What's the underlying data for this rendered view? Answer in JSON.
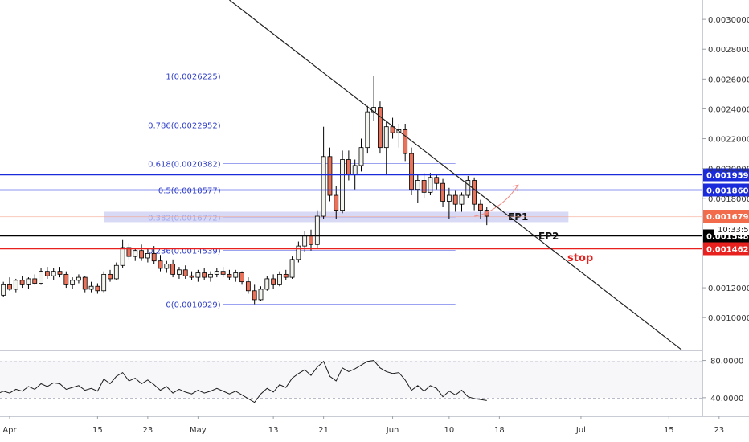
{
  "chart_data": {
    "type": "candlestick",
    "main": {
      "y_axis_ticks": [
        "0.0030000",
        "0.0028000",
        "0.0026000",
        "0.0024000",
        "0.0022000",
        "0.0020000",
        "0.0018000",
        "0.0012000",
        "0.0010000"
      ],
      "ylim": [
        0.00078,
        0.00313
      ],
      "last_price": "0.0016794",
      "countdown": "10:33:50",
      "fibonacci": {
        "start_date": "2020-05-05",
        "end_date": "2020-06-11",
        "levels": [
          {
            "label": "1(0.0026225)",
            "value": 0.0026225
          },
          {
            "label": "0.786(0.0022952)",
            "value": 0.0022952
          },
          {
            "label": "0.618(0.0020382)",
            "value": 0.0020382
          },
          {
            "label": "0.5(0.0018577)",
            "value": 0.0018577
          },
          {
            "label": "0.382(0.0016772)",
            "value": 0.0016772
          },
          {
            "label": "0.236(0.0014539)",
            "value": 0.0014539
          },
          {
            "label": "0(0.0010929)",
            "value": 0.0010929
          }
        ]
      },
      "horizontal_lines": [
        {
          "label": "0.0019591",
          "value": 0.0019591,
          "color": "#1a2bdb",
          "annotation": ""
        },
        {
          "label": "0.0018604",
          "value": 0.0018604,
          "color": "#1a2bdb",
          "annotation": ""
        },
        {
          "label": "0.0015486",
          "value": 0.0015486,
          "color": "#000000",
          "annotation": "EP2"
        },
        {
          "label": "0.0014629",
          "value": 0.0014629,
          "color": "#e8201e",
          "annotation": "stop"
        }
      ],
      "zone": {
        "from_date": "2020-04-16",
        "to_date": "2020-06-29",
        "low": 0.00164,
        "high": 0.00171,
        "annotation": "EP1"
      },
      "trendline": {
        "start": {
          "date": "2020-05-06",
          "value": 0.00313
        },
        "end": {
          "date": "2020-07-17",
          "value": 0.000785
        }
      },
      "projection": {
        "points": [
          [
            "2020-06-14",
            0.00168
          ],
          [
            "2020-06-16",
            0.00169
          ],
          [
            "2020-06-19",
            0.00176
          ],
          [
            "2020-06-21",
            0.00189
          ]
        ]
      },
      "candles": [
        [
          "2020-03-30",
          0.00128,
          0.00131,
          0.00113,
          0.00115
        ],
        [
          "2020-03-31",
          0.00115,
          0.00124,
          0.00114,
          0.00122
        ],
        [
          "2020-04-01",
          0.00122,
          0.00127,
          0.00118,
          0.00119
        ],
        [
          "2020-04-02",
          0.00119,
          0.00126,
          0.00117,
          0.00125
        ],
        [
          "2020-04-03",
          0.00125,
          0.00128,
          0.0012,
          0.00122
        ],
        [
          "2020-04-04",
          0.00122,
          0.00127,
          0.00119,
          0.00126
        ],
        [
          "2020-04-05",
          0.00126,
          0.00129,
          0.00122,
          0.00123
        ],
        [
          "2020-04-06",
          0.00123,
          0.00133,
          0.00122,
          0.00131
        ],
        [
          "2020-04-07",
          0.00131,
          0.00134,
          0.00126,
          0.00128
        ],
        [
          "2020-04-08",
          0.00128,
          0.00133,
          0.00125,
          0.00131
        ],
        [
          "2020-04-09",
          0.00131,
          0.00134,
          0.00127,
          0.00129
        ],
        [
          "2020-04-10",
          0.00129,
          0.00131,
          0.0012,
          0.00122
        ],
        [
          "2020-04-11",
          0.00122,
          0.00127,
          0.00119,
          0.00125
        ],
        [
          "2020-04-12",
          0.00125,
          0.00129,
          0.00123,
          0.00127
        ],
        [
          "2020-04-13",
          0.00127,
          0.00128,
          0.00117,
          0.00119
        ],
        [
          "2020-04-14",
          0.00119,
          0.00124,
          0.00117,
          0.00121
        ],
        [
          "2020-04-15",
          0.00121,
          0.00123,
          0.00116,
          0.00118
        ],
        [
          "2020-04-16",
          0.00118,
          0.00131,
          0.00117,
          0.00129
        ],
        [
          "2020-04-17",
          0.00129,
          0.00132,
          0.00124,
          0.00126
        ],
        [
          "2020-04-18",
          0.00126,
          0.00137,
          0.00125,
          0.00135
        ],
        [
          "2020-04-19",
          0.00135,
          0.00152,
          0.00133,
          0.00147
        ],
        [
          "2020-04-20",
          0.00147,
          0.0015,
          0.00139,
          0.00141
        ],
        [
          "2020-04-21",
          0.00141,
          0.00147,
          0.00138,
          0.00145
        ],
        [
          "2020-04-22",
          0.00145,
          0.00149,
          0.00138,
          0.0014
        ],
        [
          "2020-04-23",
          0.0014,
          0.00146,
          0.00137,
          0.00143
        ],
        [
          "2020-04-24",
          0.00143,
          0.00148,
          0.00136,
          0.00138
        ],
        [
          "2020-04-25",
          0.00138,
          0.00142,
          0.00131,
          0.00133
        ],
        [
          "2020-04-26",
          0.00133,
          0.00138,
          0.0013,
          0.00136
        ],
        [
          "2020-04-27",
          0.00136,
          0.00139,
          0.00127,
          0.00129
        ],
        [
          "2020-04-28",
          0.00129,
          0.00134,
          0.00126,
          0.00132
        ],
        [
          "2020-04-29",
          0.00132,
          0.00135,
          0.00126,
          0.00128
        ],
        [
          "2020-04-30",
          0.00128,
          0.00131,
          0.00125,
          0.00127
        ],
        [
          "2020-05-01",
          0.00127,
          0.00132,
          0.00124,
          0.0013
        ],
        [
          "2020-05-02",
          0.0013,
          0.00133,
          0.00125,
          0.00127
        ],
        [
          "2020-05-03",
          0.00127,
          0.00131,
          0.00124,
          0.00129
        ],
        [
          "2020-05-04",
          0.00129,
          0.00133,
          0.00127,
          0.00131
        ],
        [
          "2020-05-05",
          0.00131,
          0.00134,
          0.00127,
          0.00129
        ],
        [
          "2020-05-06",
          0.00129,
          0.00132,
          0.00125,
          0.00127
        ],
        [
          "2020-05-07",
          0.00127,
          0.00132,
          0.00124,
          0.0013
        ],
        [
          "2020-05-08",
          0.0013,
          0.00131,
          0.00122,
          0.00124
        ],
        [
          "2020-05-09",
          0.00124,
          0.00127,
          0.00116,
          0.00118
        ],
        [
          "2020-05-10",
          0.00118,
          0.00122,
          0.00109,
          0.00112
        ],
        [
          "2020-05-11",
          0.00112,
          0.00121,
          0.00111,
          0.00119
        ],
        [
          "2020-05-12",
          0.00119,
          0.00128,
          0.00118,
          0.00126
        ],
        [
          "2020-05-13",
          0.00126,
          0.00129,
          0.00119,
          0.00122
        ],
        [
          "2020-05-14",
          0.00122,
          0.00131,
          0.00121,
          0.00129
        ],
        [
          "2020-05-15",
          0.00129,
          0.00132,
          0.00125,
          0.00127
        ],
        [
          "2020-05-16",
          0.00127,
          0.00141,
          0.00126,
          0.00139
        ],
        [
          "2020-05-17",
          0.00139,
          0.00151,
          0.00137,
          0.00148
        ],
        [
          "2020-05-18",
          0.00148,
          0.00158,
          0.00144,
          0.00155
        ],
        [
          "2020-05-19",
          0.00155,
          0.00159,
          0.00145,
          0.00149
        ],
        [
          "2020-05-20",
          0.00149,
          0.00172,
          0.00147,
          0.00168
        ],
        [
          "2020-05-21",
          0.00168,
          0.00228,
          0.00166,
          0.00208
        ],
        [
          "2020-05-22",
          0.00208,
          0.00214,
          0.00178,
          0.00182
        ],
        [
          "2020-05-23",
          0.00182,
          0.00188,
          0.00166,
          0.00172
        ],
        [
          "2020-05-24",
          0.00172,
          0.00212,
          0.0017,
          0.00206
        ],
        [
          "2020-05-25",
          0.00206,
          0.00212,
          0.00192,
          0.00196
        ],
        [
          "2020-05-26",
          0.00196,
          0.00206,
          0.00186,
          0.00202
        ],
        [
          "2020-05-27",
          0.00202,
          0.0022,
          0.00198,
          0.00214
        ],
        [
          "2020-05-28",
          0.00214,
          0.00242,
          0.0021,
          0.00238
        ],
        [
          "2020-05-29",
          0.00238,
          0.00262,
          0.00232,
          0.00241
        ],
        [
          "2020-05-30",
          0.00241,
          0.00245,
          0.0021,
          0.00214
        ],
        [
          "2020-05-31",
          0.00214,
          0.00232,
          0.00196,
          0.00228
        ],
        [
          "2020-06-01",
          0.00228,
          0.00234,
          0.0022,
          0.00224
        ],
        [
          "2020-06-02",
          0.00224,
          0.0023,
          0.00214,
          0.00226
        ],
        [
          "2020-06-03",
          0.00226,
          0.0023,
          0.00205,
          0.0021
        ],
        [
          "2020-06-04",
          0.0021,
          0.00214,
          0.00182,
          0.00186
        ],
        [
          "2020-06-05",
          0.00186,
          0.00196,
          0.00177,
          0.00192
        ],
        [
          "2020-06-06",
          0.00192,
          0.00197,
          0.0018,
          0.00184
        ],
        [
          "2020-06-07",
          0.00184,
          0.00197,
          0.00182,
          0.00194
        ],
        [
          "2020-06-08",
          0.00194,
          0.00196,
          0.00186,
          0.0019
        ],
        [
          "2020-06-09",
          0.0019,
          0.00193,
          0.00174,
          0.00178
        ],
        [
          "2020-06-10",
          0.00178,
          0.00187,
          0.00166,
          0.00182
        ],
        [
          "2020-06-11",
          0.00182,
          0.00185,
          0.00171,
          0.00176
        ],
        [
          "2020-06-12",
          0.00176,
          0.00184,
          0.00171,
          0.00182
        ],
        [
          "2020-06-13",
          0.00182,
          0.00195,
          0.0018,
          0.00192
        ],
        [
          "2020-06-14",
          0.00192,
          0.00194,
          0.00172,
          0.00176
        ],
        [
          "2020-06-15",
          0.00176,
          0.00179,
          0.00166,
          0.00172
        ],
        [
          "2020-06-16",
          0.00172,
          0.00174,
          0.00162,
          0.00168
        ]
      ]
    },
    "rsi": {
      "y_axis_ticks": [
        "80.0000",
        "40.0000"
      ],
      "ylim": [
        20,
        90
      ],
      "levels": [
        80,
        40
      ],
      "values": [
        44,
        47,
        45,
        49,
        47,
        52,
        49,
        55,
        52,
        56,
        55,
        49,
        51,
        53,
        48,
        50,
        47,
        60,
        55,
        63,
        67,
        58,
        61,
        55,
        59,
        54,
        48,
        52,
        45,
        49,
        46,
        44,
        48,
        45,
        47,
        50,
        47,
        44,
        47,
        43,
        39,
        35,
        44,
        50,
        46,
        54,
        51,
        61,
        66,
        70,
        64,
        73,
        79,
        63,
        58,
        72,
        68,
        71,
        75,
        79,
        80,
        72,
        68,
        66,
        67,
        59,
        48,
        53,
        47,
        53,
        50,
        41,
        47,
        43,
        48,
        41,
        39,
        38,
        37
      ]
    },
    "x_axis_ticks": [
      {
        "label": "Apr",
        "date": "2020-04-01"
      },
      {
        "label": "15",
        "date": "2020-04-15"
      },
      {
        "label": "23",
        "date": "2020-04-23"
      },
      {
        "label": "May",
        "date": "2020-05-01"
      },
      {
        "label": "13",
        "date": "2020-05-13"
      },
      {
        "label": "21",
        "date": "2020-05-21"
      },
      {
        "label": "Jun",
        "date": "2020-06-01"
      },
      {
        "label": "10",
        "date": "2020-06-10"
      },
      {
        "label": "18",
        "date": "2020-06-18"
      },
      {
        "label": "Jul",
        "date": "2020-07-01"
      },
      {
        "label": "15",
        "date": "2020-07-15"
      },
      {
        "label": "23",
        "date": "2020-07-23"
      }
    ]
  }
}
